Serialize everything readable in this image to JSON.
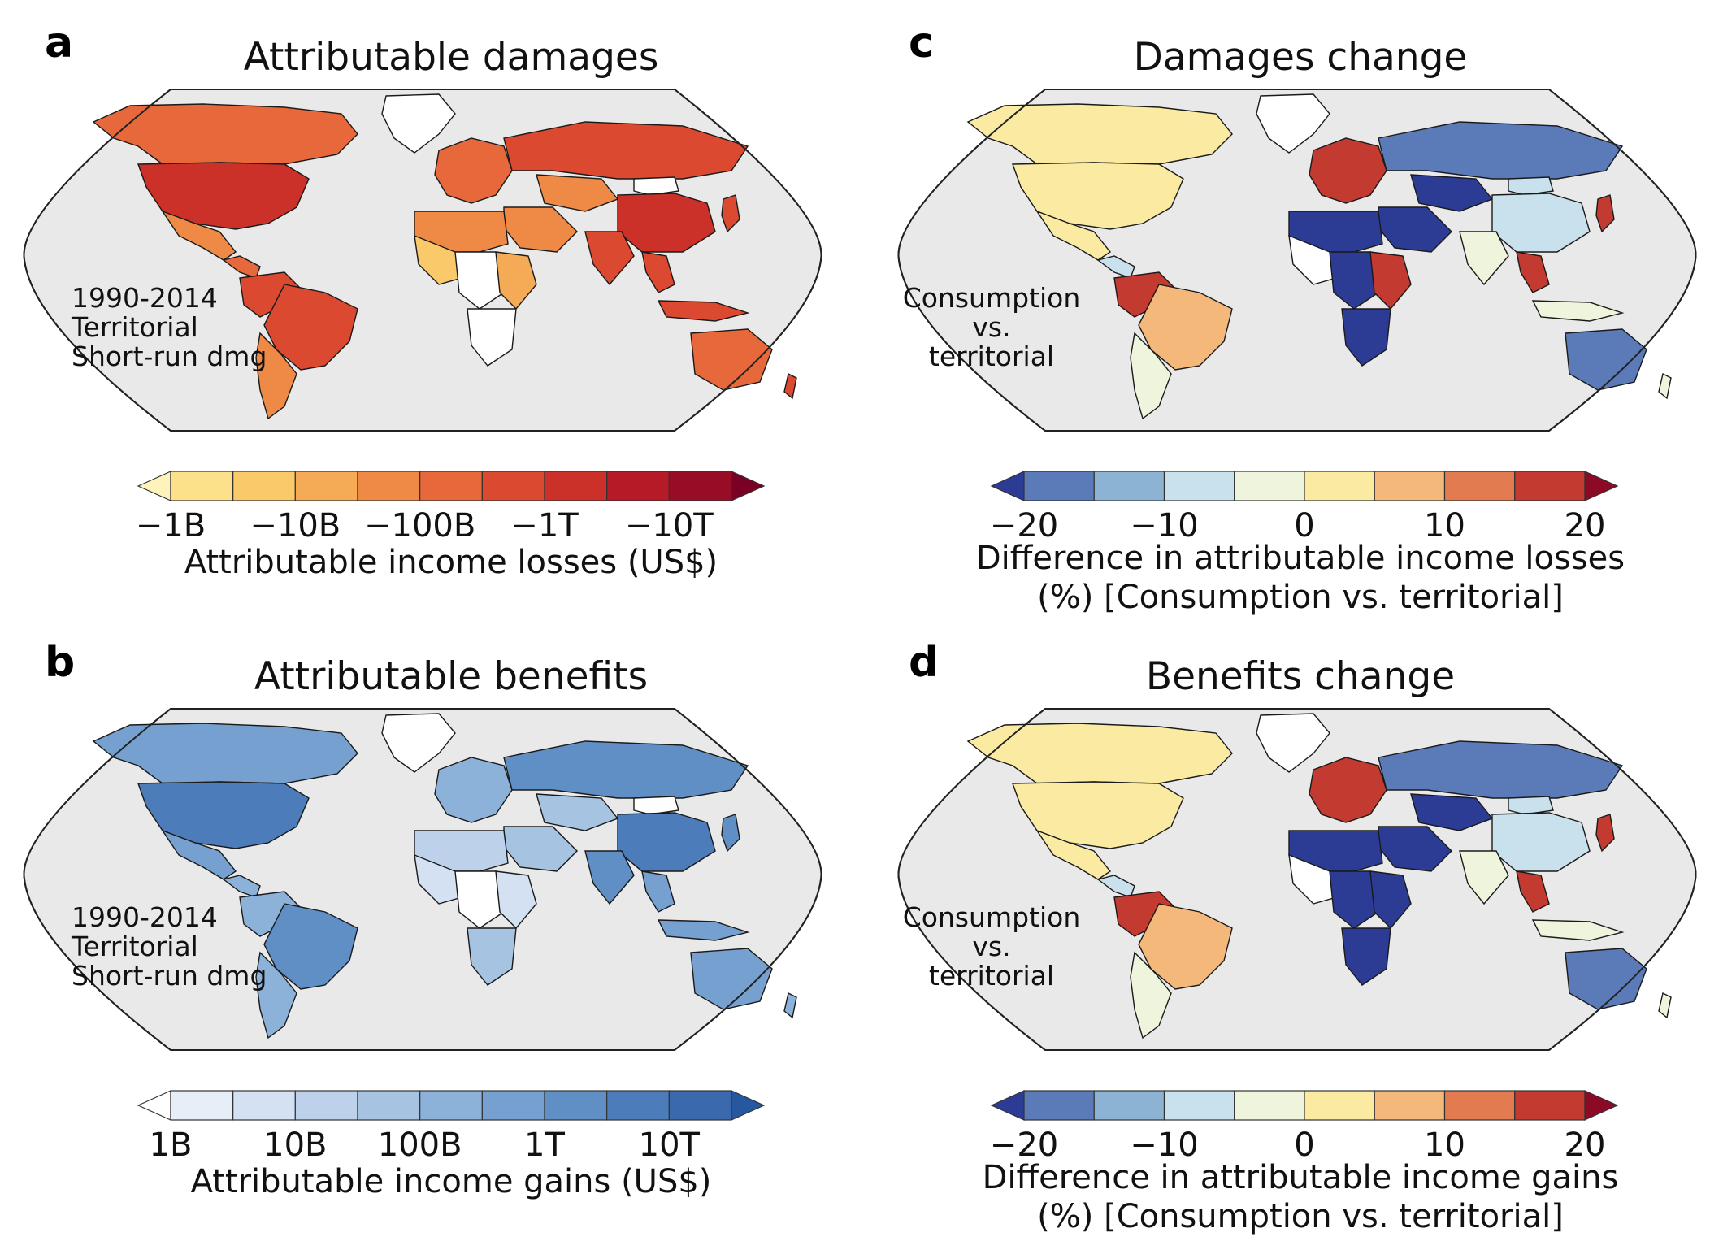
{
  "panels": [
    {
      "letter": "a",
      "title": "Attributable damages",
      "annotation": [
        "1990-2014",
        "Territorial",
        "Short-run dmg"
      ],
      "colorbar": {
        "colors": [
          "#fef3bb",
          "#fce08a",
          "#f9c96a",
          "#f5ab56",
          "#ef8a46",
          "#e7683a",
          "#db4a30",
          "#cb3128",
          "#b51a26",
          "#980d26",
          "#7a0024"
        ],
        "ticks": [
          "−1B",
          "−10B",
          "−100B",
          "−1T",
          "−10T"
        ],
        "label": [
          "Attributable income losses (US$)"
        ]
      }
    },
    {
      "letter": "b",
      "title": "Attributable benefits",
      "annotation": [
        "1990-2014",
        "Territorial",
        "Short-run dmg"
      ],
      "colorbar": {
        "colors": [
          "#ffffff",
          "#e6eef8",
          "#d3e1f2",
          "#bdd2ea",
          "#a6c3e2",
          "#8db2d9",
          "#75a0cf",
          "#5f8fc5",
          "#4c7dba",
          "#3a69ad",
          "#27579f"
        ],
        "ticks": [
          "1B",
          "10B",
          "100B",
          "1T",
          "10T"
        ],
        "label": [
          "Attributable income gains (US$)"
        ]
      }
    },
    {
      "letter": "c",
      "title": "Damages change",
      "annotation": [
        "Consumption",
        "vs.",
        "territorial"
      ],
      "colorbar": {
        "colors": [
          "#2c3b94",
          "#5a7ab8",
          "#8db3d4",
          "#c8e1ec",
          "#eef5dc",
          "#fbeaa2",
          "#f4b97a",
          "#e27b4f",
          "#c23a30",
          "#8c0a26"
        ],
        "ticks": [
          "−20",
          "−10",
          "0",
          "10",
          "20"
        ],
        "label": [
          "Difference in attributable income losses",
          "(%) [Consumption vs. territorial]"
        ]
      }
    },
    {
      "letter": "d",
      "title": "Benefits change",
      "annotation": [
        "Consumption",
        "vs.",
        "territorial"
      ],
      "colorbar": {
        "colors": [
          "#2c3b94",
          "#5a7ab8",
          "#8db3d4",
          "#c8e1ec",
          "#eef5dc",
          "#fbeaa2",
          "#f4b97a",
          "#e27b4f",
          "#c23a30",
          "#8c0a26"
        ],
        "ticks": [
          "−20",
          "−10",
          "0",
          "10",
          "20"
        ],
        "label": [
          "Difference in attributable income gains",
          "(%) [Consumption vs. territorial]"
        ]
      }
    }
  ],
  "map_fills": {
    "a": {
      "na": "#cb3128",
      "greenland": "#ffffff",
      "canada": "#e7683a",
      "mexico": "#ef8a46",
      "central_am": "#e7683a",
      "sa_north": "#db4a30",
      "brazil": "#db4a30",
      "sa_south": "#ef8a46",
      "europe": "#e7683a",
      "russia": "#db4a30",
      "mongolia": "#ffffff",
      "central_asia": "#ef8a46",
      "china": "#cb3128",
      "india": "#db4a30",
      "se_asia": "#db4a30",
      "indonesia": "#db4a30",
      "japan": "#db4a30",
      "middle_east": "#ef8a46",
      "n_africa": "#ef8a46",
      "w_africa": "#f9c96a",
      "c_africa": "#ffffff",
      "e_africa": "#f5ab56",
      "s_africa": "#ffffff",
      "australia": "#e7683a",
      "nz": "#db4a30"
    },
    "b": {
      "na": "#4c7dba",
      "greenland": "#ffffff",
      "canada": "#75a0cf",
      "mexico": "#75a0cf",
      "central_am": "#8db2d9",
      "sa_north": "#8db2d9",
      "brazil": "#5f8fc5",
      "sa_south": "#8db2d9",
      "europe": "#8db2d9",
      "russia": "#5f8fc5",
      "mongolia": "#ffffff",
      "central_asia": "#a6c3e2",
      "china": "#4c7dba",
      "india": "#5f8fc5",
      "se_asia": "#75a0cf",
      "indonesia": "#75a0cf",
      "japan": "#5f8fc5",
      "middle_east": "#a6c3e2",
      "n_africa": "#bdd2ea",
      "w_africa": "#d3e1f2",
      "c_africa": "#ffffff",
      "e_africa": "#d3e1f2",
      "s_africa": "#a6c3e2",
      "australia": "#75a0cf",
      "nz": "#8db2d9"
    },
    "c": {
      "na": "#fbeaa2",
      "greenland": "#ffffff",
      "canada": "#fbeaa2",
      "mexico": "#fbeaa2",
      "central_am": "#c8e1ec",
      "sa_north": "#c23a30",
      "brazil": "#f4b97a",
      "sa_south": "#eef5dc",
      "europe": "#c23a30",
      "russia": "#5a7ab8",
      "mongolia": "#c8e1ec",
      "central_asia": "#2c3b94",
      "china": "#c8e1ec",
      "india": "#eef5dc",
      "se_asia": "#c23a30",
      "indonesia": "#eef5dc",
      "japan": "#c23a30",
      "middle_east": "#2c3b94",
      "n_africa": "#2c3b94",
      "w_africa": "#ffffff",
      "c_africa": "#2c3b94",
      "e_africa": "#c23a30",
      "s_africa": "#2c3b94",
      "australia": "#5a7ab8",
      "nz": "#eef5dc"
    },
    "d": {
      "na": "#fbeaa2",
      "greenland": "#ffffff",
      "canada": "#fbeaa2",
      "mexico": "#fbeaa2",
      "central_am": "#c8e1ec",
      "sa_north": "#c23a30",
      "brazil": "#f4b97a",
      "sa_south": "#eef5dc",
      "europe": "#c23a30",
      "russia": "#5a7ab8",
      "mongolia": "#c8e1ec",
      "central_asia": "#2c3b94",
      "china": "#c8e1ec",
      "india": "#eef5dc",
      "se_asia": "#c23a30",
      "indonesia": "#eef5dc",
      "japan": "#c23a30",
      "middle_east": "#2c3b94",
      "n_africa": "#2c3b94",
      "w_africa": "#ffffff",
      "c_africa": "#2c3b94",
      "e_africa": "#2c3b94",
      "s_africa": "#2c3b94",
      "australia": "#5a7ab8",
      "nz": "#eef5dc"
    }
  }
}
